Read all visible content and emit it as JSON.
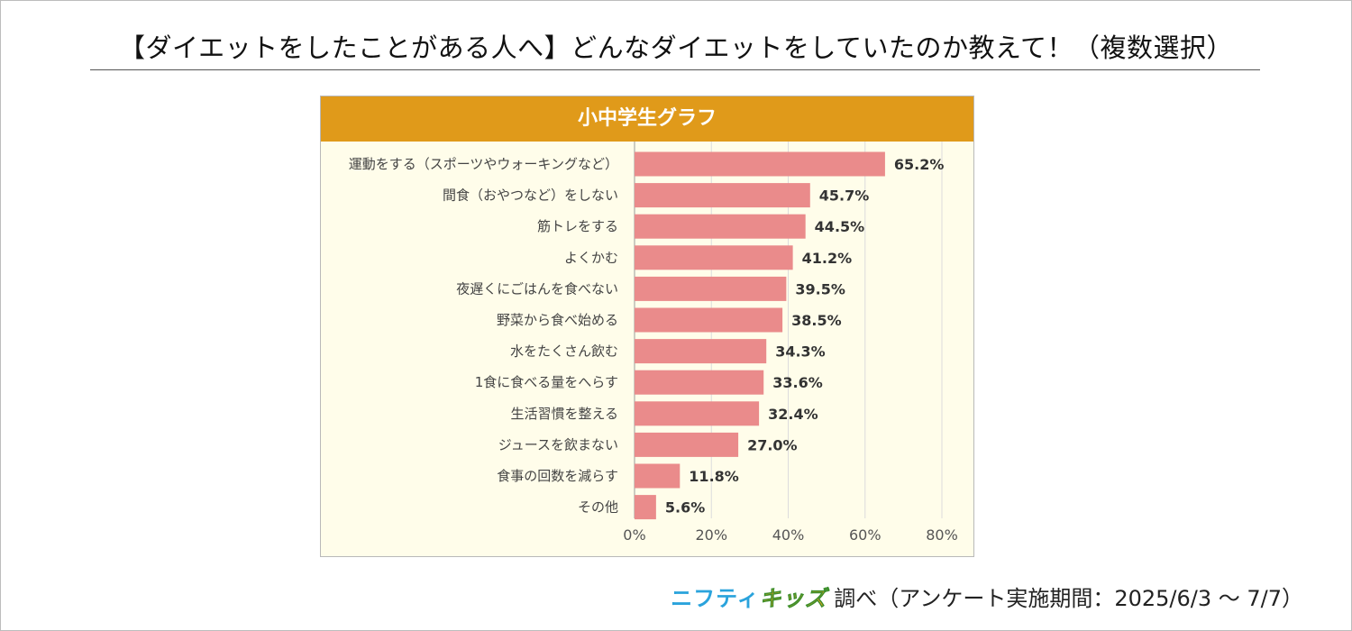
{
  "title": "【ダイエットをしたことがある人へ】どんなダイエットをしていたのか教えて！（複数選択）",
  "chart_data": {
    "type": "bar",
    "orientation": "horizontal",
    "title": "小中学生グラフ",
    "categories": [
      "運動をする（スポーツやウォーキングなど）",
      "間食（おやつなど）をしない",
      "筋トレをする",
      "よくかむ",
      "夜遅くにごはんを食べない",
      "野菜から食べ始める",
      "水をたくさん飲む",
      "1食に食べる量をへらす",
      "生活習慣を整える",
      "ジュースを飲まない",
      "食事の回数を減らす",
      "その他"
    ],
    "values": [
      65.2,
      45.7,
      44.5,
      41.2,
      39.5,
      38.5,
      34.3,
      33.6,
      32.4,
      27.0,
      11.8,
      5.6
    ],
    "value_labels": [
      "65.2%",
      "45.7%",
      "44.5%",
      "41.2%",
      "39.5%",
      "38.5%",
      "34.3%",
      "33.6%",
      "32.4%",
      "27.0%",
      "11.8%",
      "5.6%"
    ],
    "xlim": [
      0,
      80
    ],
    "xticks": [
      0,
      20,
      40,
      60,
      80
    ],
    "xtick_labels": [
      "0%",
      "20%",
      "40%",
      "60%",
      "80%"
    ],
    "grid": true,
    "bar_color": "#ea8b8b",
    "header_color": "#e09a1a",
    "background_color": "#fffdea"
  },
  "credit": {
    "brand_part1": "ニフティ",
    "brand_part2": "キッズ",
    "text": "調べ（アンケート実施期間：2025/6/3 ～ 7/7）"
  }
}
